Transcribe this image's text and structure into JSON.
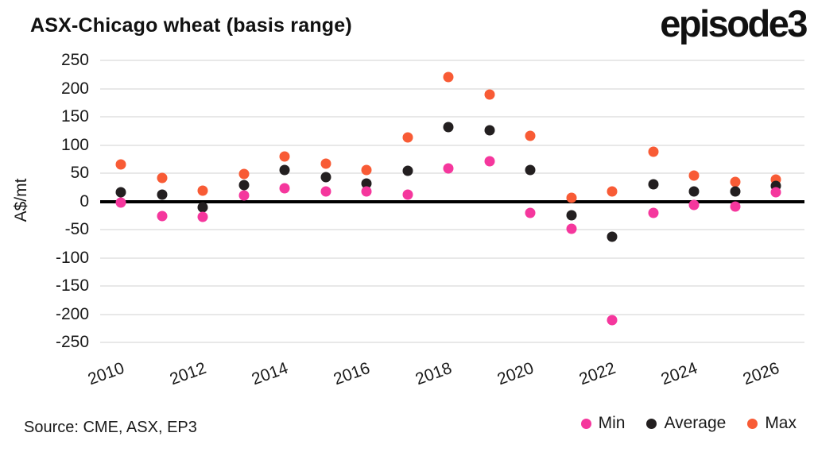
{
  "header": {
    "title": "ASX-Chicago wheat (basis range)",
    "logo": "episode3"
  },
  "footer": {
    "source": "Source: CME, ASX, EP3"
  },
  "chart_data": {
    "type": "scatter",
    "title": "ASX-Chicago wheat (basis range)",
    "xlabel": "",
    "ylabel": "A$/mt",
    "ylim": [
      -250,
      250
    ],
    "ytick_step": 50,
    "grid": true,
    "zero_line": true,
    "legend_position": "bottom-right",
    "x": [
      2010,
      2011,
      2012,
      2013,
      2014,
      2015,
      2016,
      2017,
      2018,
      2019,
      2020,
      2021,
      2022,
      2023,
      2024,
      2025,
      2026
    ],
    "xtick_labels": [
      "2010",
      "2012",
      "2014",
      "2016",
      "2018",
      "2020",
      "2022",
      "2024",
      "2026"
    ],
    "series": [
      {
        "name": "Min",
        "color": "#f5379d",
        "values": [
          -2,
          -26,
          -28,
          11,
          23,
          18,
          17,
          12,
          59,
          71,
          -21,
          -48,
          -210,
          -21,
          -6,
          -9,
          16
        ]
      },
      {
        "name": "Average",
        "color": "#231f20",
        "values": [
          16,
          12,
          -11,
          29,
          56,
          43,
          31,
          54,
          131,
          126,
          56,
          -25,
          -63,
          30,
          17,
          17,
          27
        ]
      },
      {
        "name": "Max",
        "color": "#f85b35",
        "values": [
          65,
          41,
          19,
          48,
          80,
          67,
          55,
          113,
          220,
          190,
          116,
          7,
          17,
          88,
          46,
          35,
          39
        ]
      }
    ],
    "colors": {
      "grid": "#e8e8e8",
      "zero_line": "#000000",
      "text": "#1a1a1a",
      "background": "#ffffff"
    }
  }
}
